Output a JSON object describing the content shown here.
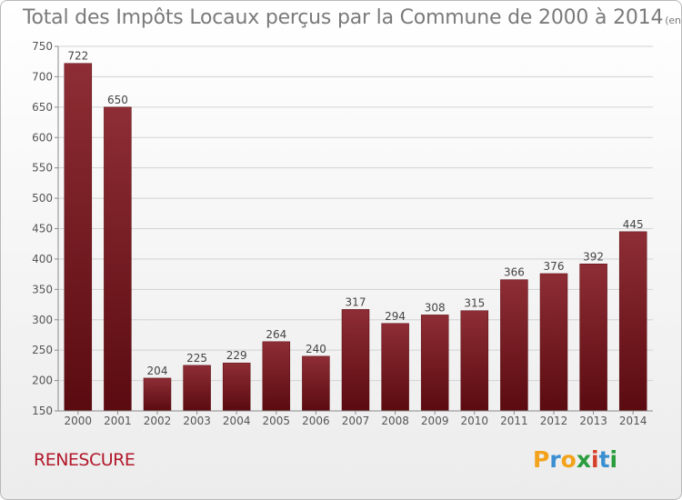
{
  "title": "Total des Impôts Locaux perçus par la Commune de 2000 à 2014",
  "unit": "(en milliers d'€)",
  "commune": "RENESCURE",
  "logo": {
    "letters": [
      "P",
      "r",
      "o",
      "x",
      "i",
      "t",
      "i"
    ],
    "colors": [
      "#f2a21b",
      "#3b8fd0",
      "#f2a21b",
      "#2a9d3c",
      "#d6402b",
      "#3b8fd0",
      "#2a9d3c"
    ]
  },
  "chart_data": {
    "type": "bar",
    "title": "Total des Impôts Locaux perçus par la Commune de 2000 à 2014",
    "categories": [
      "2000",
      "2001",
      "2002",
      "2003",
      "2004",
      "2005",
      "2006",
      "2007",
      "2008",
      "2009",
      "2010",
      "2011",
      "2012",
      "2013",
      "2014"
    ],
    "values": [
      722,
      650,
      204,
      225,
      229,
      264,
      240,
      317,
      294,
      308,
      315,
      366,
      376,
      392,
      445
    ],
    "ylim": [
      150,
      750
    ],
    "yticks": [
      150,
      200,
      250,
      300,
      350,
      400,
      450,
      500,
      550,
      600,
      650,
      700,
      750
    ],
    "grid": true,
    "bar_color": "#7a1b22"
  }
}
